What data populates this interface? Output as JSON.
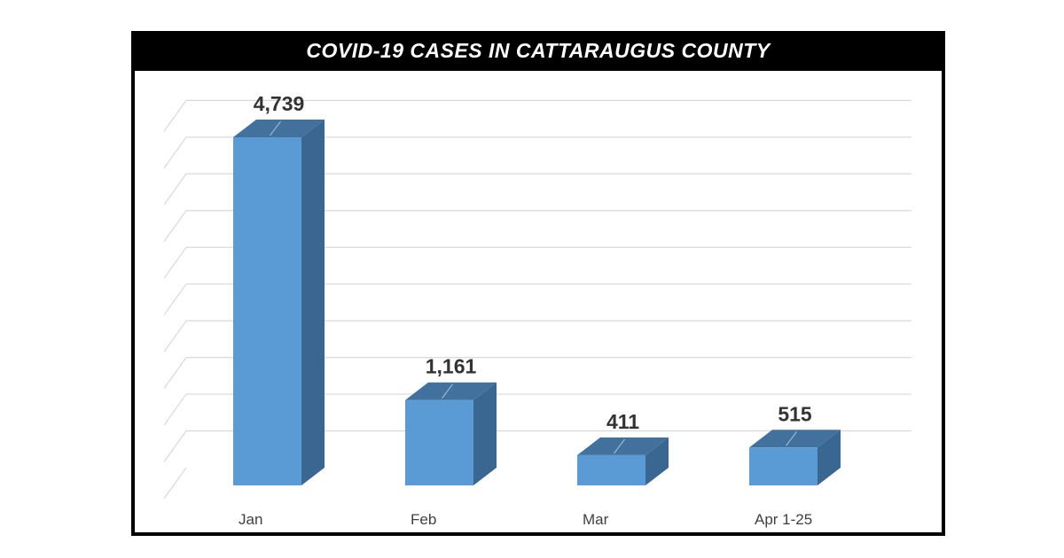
{
  "header": {
    "title": "COVID-19 CASES IN CATTARAUGUS COUNTY"
  },
  "colors": {
    "bar_front": "#5b9bd5",
    "bar_top": "#41719c",
    "bar_side": "#3a6791",
    "gridline": "#d9d9d9",
    "label": "#333333",
    "frame": "#000000"
  },
  "chart_data": {
    "type": "bar",
    "title": "COVID-19 CASES IN CATTARAUGUS COUNTY",
    "categories": [
      "Jan",
      "Feb",
      "Mar",
      "Apr 1-25"
    ],
    "values": [
      4739,
      1161,
      411,
      515
    ],
    "value_labels": [
      "4,739",
      "1,161",
      "411",
      "515"
    ],
    "xlabel": "",
    "ylabel": "",
    "ylim": [
      0,
      5000
    ],
    "grid": true,
    "grid_step": 500,
    "legend": null,
    "style": "3d-column"
  }
}
